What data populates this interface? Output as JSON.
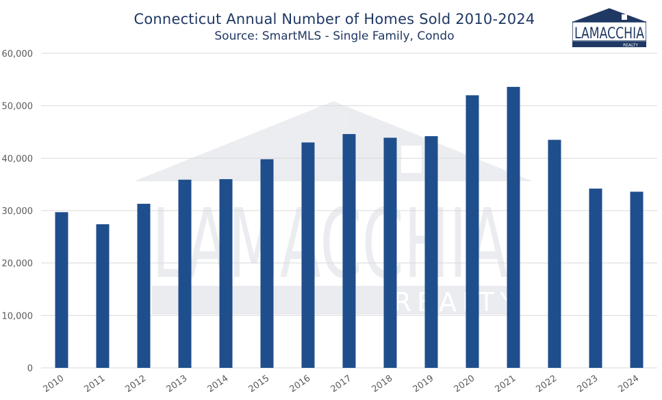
{
  "title": "Connecticut Annual Number of Homes Sold 2010-2024",
  "subtitle": "Source: SmartMLS - Single Family, Condo",
  "logo": {
    "name": "LAMACCHIA",
    "sub": "REALTY"
  },
  "watermark": {
    "name": "LAMACCHIA",
    "sub": "REALTY"
  },
  "colors": {
    "bar": "#1f4e8c",
    "grid": "#d9d9d9",
    "text": "#1f3864",
    "axis_text": "#595959"
  },
  "chart_data": {
    "type": "bar",
    "categories": [
      "2010",
      "2011",
      "2012",
      "2013",
      "2014",
      "2015",
      "2016",
      "2017",
      "2018",
      "2019",
      "2020",
      "2021",
      "2022",
      "2023",
      "2024"
    ],
    "values": [
      29700,
      27400,
      31300,
      35900,
      36000,
      39800,
      43000,
      44600,
      43900,
      44200,
      52000,
      53600,
      43500,
      34200,
      33600
    ],
    "ylim": [
      0,
      60000
    ],
    "yticks": [
      "0",
      "10,000",
      "20,000",
      "30,000",
      "40,000",
      "50,000",
      "60,000"
    ],
    "ytick_values": [
      0,
      10000,
      20000,
      30000,
      40000,
      50000,
      60000
    ],
    "grid": true,
    "xlabel": "",
    "ylabel": ""
  }
}
